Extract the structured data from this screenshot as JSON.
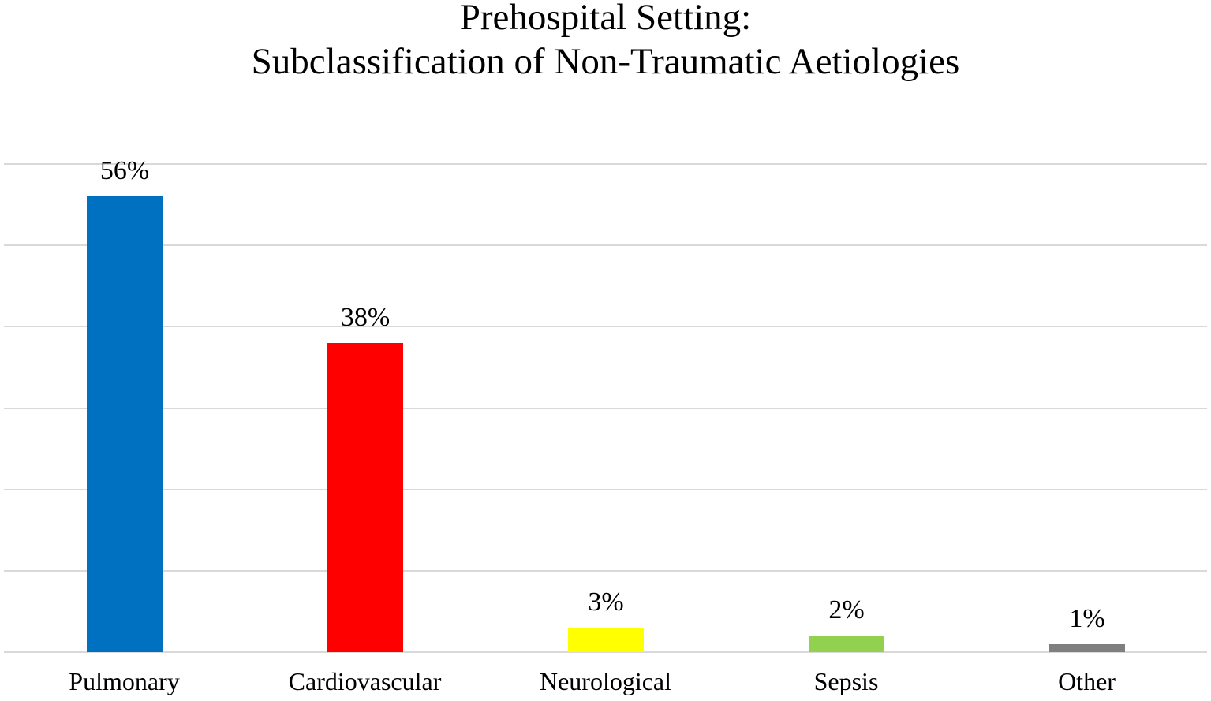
{
  "chart_data": {
    "type": "bar",
    "title": "Prehospital Setting: Subclassification of Non-Traumatic Aetiologies",
    "title_lines": [
      "Prehospital Setting:",
      "Subclassification of Non-Traumatic Aetiologies"
    ],
    "categories": [
      "Pulmonary",
      "Cardiovascular",
      "Neurological",
      "Sepsis",
      "Other"
    ],
    "values": [
      56,
      38,
      3,
      2,
      1
    ],
    "value_labels": [
      "56%",
      "38%",
      "3%",
      "2%",
      "1%"
    ],
    "bar_colors": [
      "#0070C0",
      "#FF0000",
      "#FFFF00",
      "#92D050",
      "#7F7F7F"
    ],
    "xlabel": "",
    "ylabel": "",
    "ylim": [
      0,
      60
    ],
    "gridline_values": [
      0,
      10,
      20,
      30,
      40,
      50,
      60
    ],
    "grid": true,
    "legend": "none",
    "axis_tick_labels_visible": false,
    "colors": {
      "background": "#FFFFFF",
      "gridline": "#D9D9D9",
      "text": "#000000"
    }
  }
}
